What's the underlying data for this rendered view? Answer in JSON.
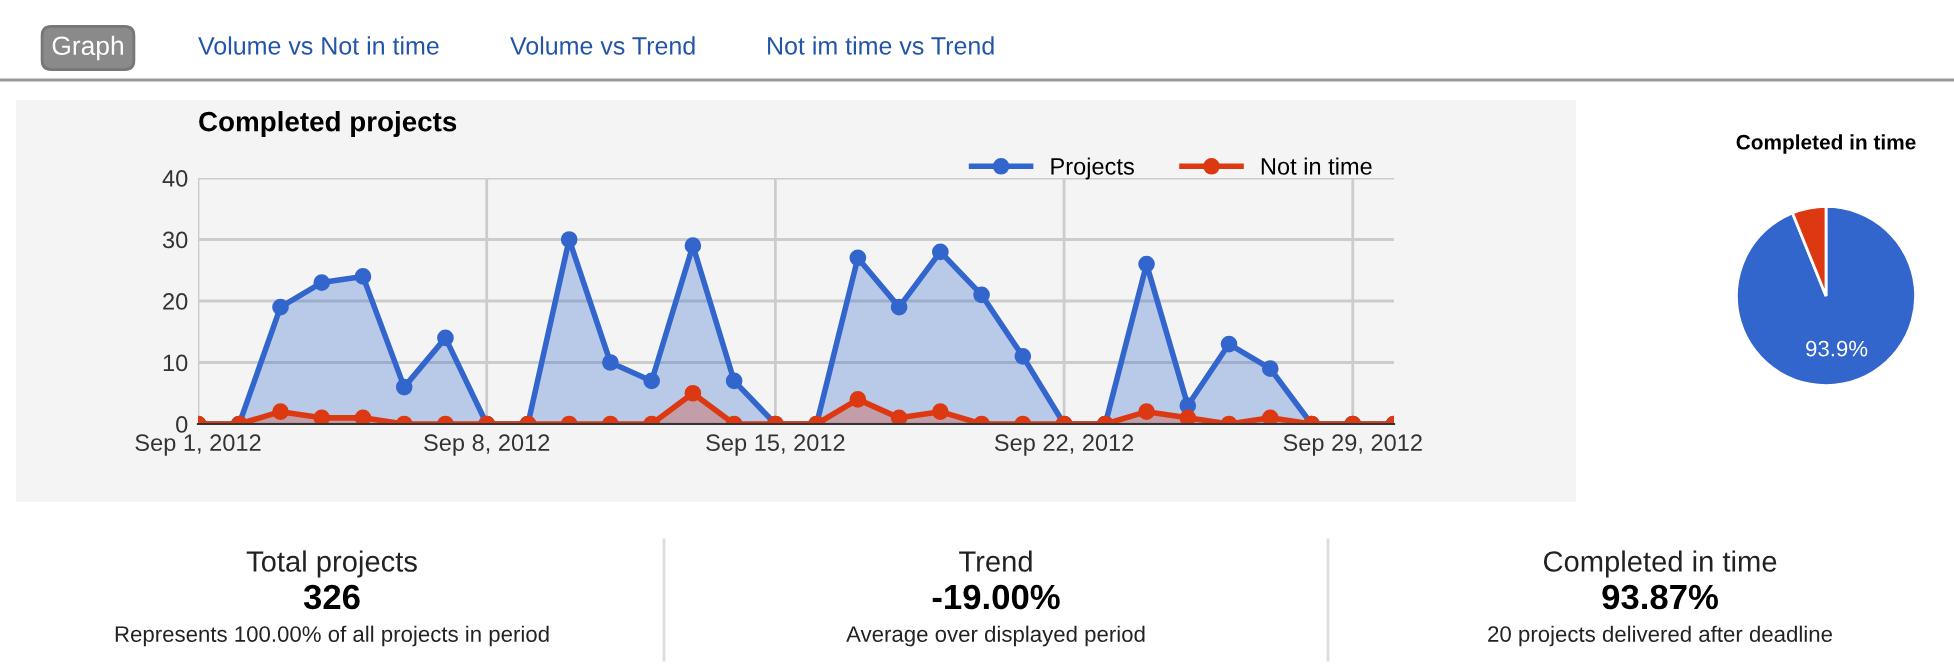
{
  "chart_data": [
    {
      "type": "other",
      "annotations": [
        "Graph",
        "Volume vs Not in time",
        "Volume vs Trend",
        "Not im time vs Trend"
      ]
    },
    {
      "type": "area",
      "title": "Completed projects",
      "x": [
        "2012-09-01",
        "2012-09-02",
        "2012-09-03",
        "2012-09-04",
        "2012-09-05",
        "2012-09-06",
        "2012-09-07",
        "2012-09-08",
        "2012-09-09",
        "2012-09-10",
        "2012-09-11",
        "2012-09-12",
        "2012-09-13",
        "2012-09-14",
        "2012-09-15",
        "2012-09-16",
        "2012-09-17",
        "2012-09-18",
        "2012-09-19",
        "2012-09-20",
        "2012-09-21",
        "2012-09-22",
        "2012-09-23",
        "2012-09-24",
        "2012-09-25",
        "2012-09-26",
        "2012-09-27",
        "2012-09-28",
        "2012-09-29",
        "2012-09-30"
      ],
      "series": [
        {
          "name": "Projects",
          "color": "#3366cc",
          "values": [
            0,
            0,
            19,
            23,
            24,
            6,
            14,
            0,
            0,
            30,
            10,
            7,
            29,
            7,
            0,
            0,
            27,
            19,
            28,
            21,
            11,
            0,
            0,
            26,
            3,
            13,
            9,
            0,
            0,
            0
          ]
        },
        {
          "name": "Not in time",
          "color": "#dc3912",
          "values": [
            0,
            0,
            2,
            1,
            1,
            0,
            0,
            0,
            0,
            0,
            0,
            0,
            5,
            0,
            0,
            0,
            4,
            1,
            2,
            0,
            0,
            0,
            0,
            2,
            1,
            0,
            1,
            0,
            0,
            0
          ]
        }
      ],
      "xlim": [
        "2012-09-01",
        "2012-09-30"
      ],
      "xticks": [
        {
          "value": "2012-09-01",
          "label": "Sep 1, 2012"
        },
        {
          "value": "2012-09-08",
          "label": "Sep 8, 2012"
        },
        {
          "value": "2012-09-15",
          "label": "Sep 15, 2012"
        },
        {
          "value": "2012-09-22",
          "label": "Sep 22, 2012"
        },
        {
          "value": "2012-09-29",
          "label": "Sep 29, 2012"
        }
      ],
      "ylim": [
        0,
        40
      ],
      "yticks": [
        0,
        10,
        20,
        30,
        40
      ],
      "grid": true,
      "legend": "top right",
      "marker": "circle",
      "line_style": "solid"
    },
    {
      "type": "pie",
      "title": "Completed in time",
      "categories": [
        null,
        null
      ],
      "values": [
        93.9,
        6.1
      ],
      "colors": [
        "#3366cc",
        "#dc3912"
      ],
      "value_labels": [
        "93.9%",
        null
      ]
    },
    {
      "type": "other",
      "annotations": [
        "Total projects",
        "326",
        "Represents 100.00% of all projects in period",
        "Trend",
        "-19.00%",
        "Average over displayed period",
        "Completed in time",
        "93.87%",
        "20 projects delivered after deadline"
      ]
    }
  ]
}
